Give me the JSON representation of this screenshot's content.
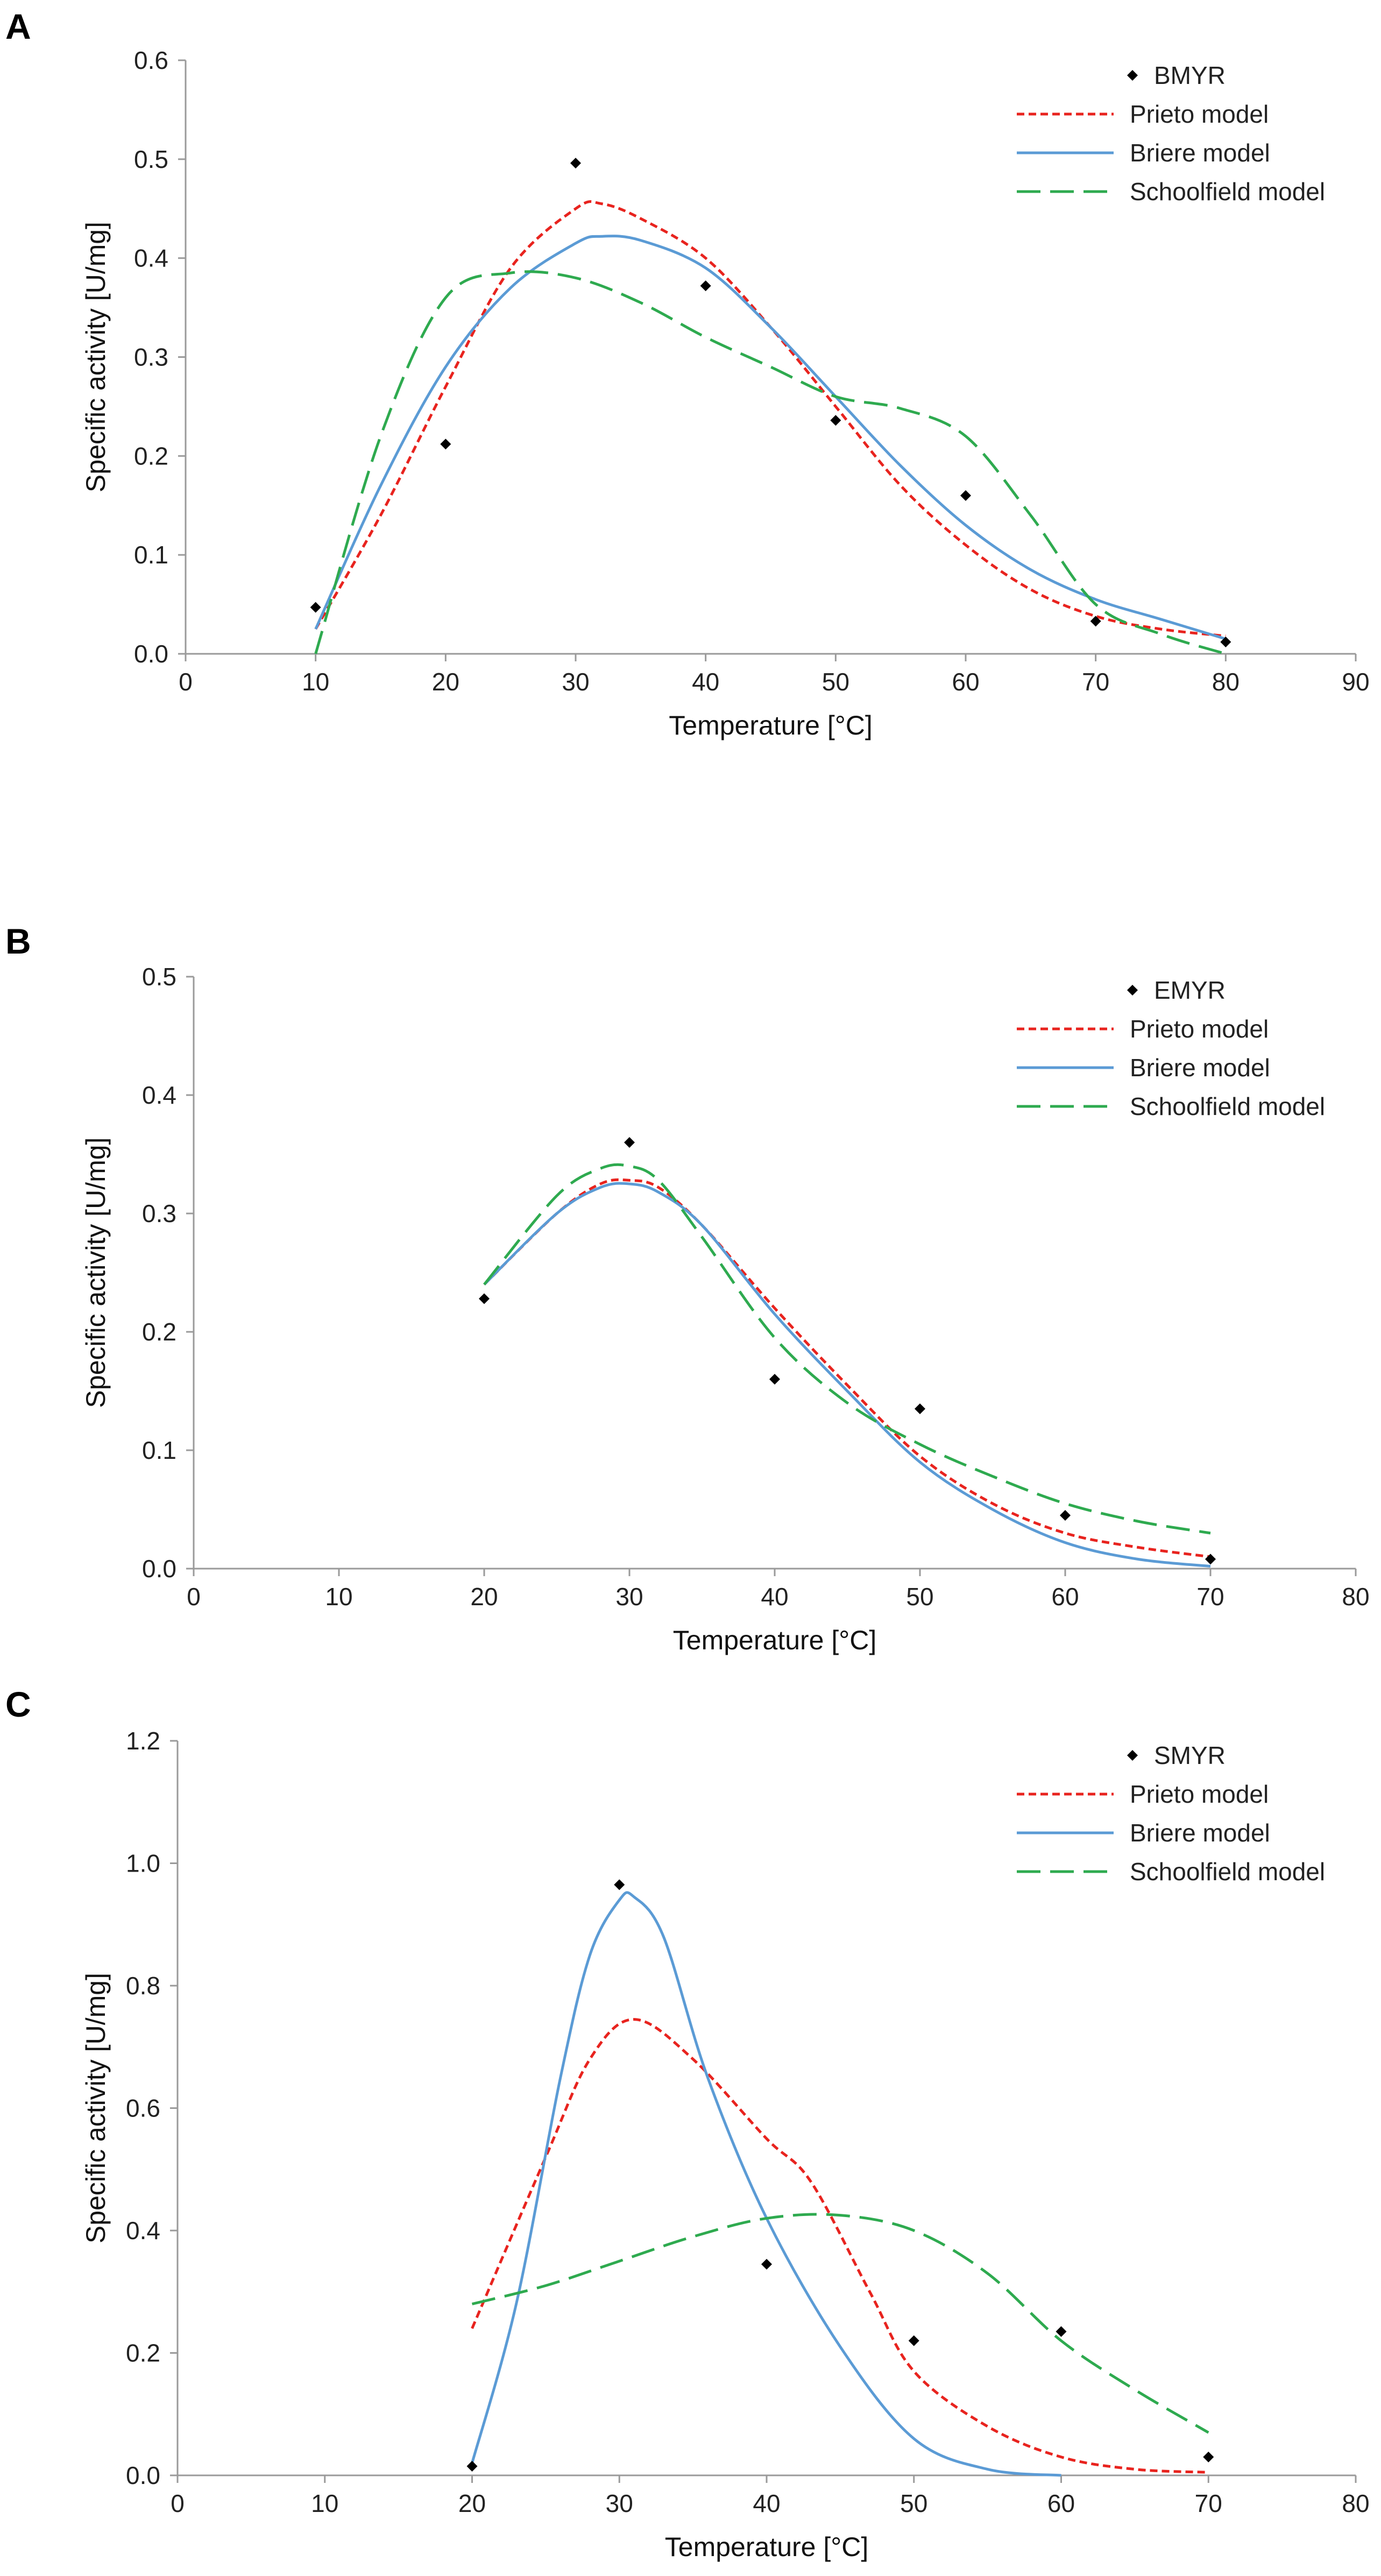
{
  "colors": {
    "points": "#000000",
    "prieto": "#e8231e",
    "briere": "#5b9bd5",
    "schoolfield": "#2eaa4f",
    "axis": "#9a9a9a"
  },
  "chart_data": [
    {
      "panel": "A",
      "type": "scatter",
      "xlabel": "Temperature [°C]",
      "ylabel": "Specific activity [U/mg]",
      "xlim": [
        0,
        90
      ],
      "ylim": [
        0,
        0.6
      ],
      "xticks": [
        0,
        10,
        20,
        30,
        40,
        50,
        60,
        70,
        80,
        90
      ],
      "yticks": [
        0.0,
        0.1,
        0.2,
        0.3,
        0.4,
        0.5,
        0.6
      ],
      "ytick_labels": [
        "0.0",
        "0.1",
        "0.2",
        "0.3",
        "0.4",
        "0.5",
        "0.6"
      ],
      "legend_position": "top-right",
      "series": [
        {
          "name": "BMYR",
          "style": "points",
          "x": [
            10,
            20,
            30,
            40,
            50,
            60,
            70,
            80
          ],
          "y": [
            0.047,
            0.212,
            0.496,
            0.372,
            0.236,
            0.16,
            0.033,
            0.012
          ]
        },
        {
          "name": "Prieto model",
          "style": "dotted",
          "x": [
            10,
            15,
            20,
            25,
            30,
            32,
            35,
            40,
            45,
            50,
            55,
            60,
            65,
            70,
            75,
            80
          ],
          "y": [
            0.025,
            0.14,
            0.27,
            0.39,
            0.45,
            0.455,
            0.44,
            0.4,
            0.33,
            0.25,
            0.17,
            0.11,
            0.065,
            0.038,
            0.025,
            0.018
          ]
        },
        {
          "name": "Briere model",
          "style": "solid",
          "x": [
            10,
            15,
            20,
            25,
            30,
            32,
            35,
            40,
            45,
            50,
            55,
            60,
            65,
            70,
            75,
            80
          ],
          "y": [
            0.025,
            0.17,
            0.29,
            0.37,
            0.415,
            0.422,
            0.418,
            0.39,
            0.33,
            0.26,
            0.19,
            0.13,
            0.085,
            0.055,
            0.035,
            0.015
          ]
        },
        {
          "name": "Schoolfield model",
          "style": "dashed",
          "x": [
            10,
            15,
            20,
            25,
            30,
            35,
            40,
            45,
            50,
            55,
            60,
            65,
            70,
            75,
            80
          ],
          "y": [
            0.0,
            0.22,
            0.36,
            0.385,
            0.38,
            0.355,
            0.32,
            0.29,
            0.26,
            0.248,
            0.22,
            0.14,
            0.05,
            0.02,
            0.0
          ]
        }
      ]
    },
    {
      "panel": "B",
      "type": "scatter",
      "xlabel": "Temperature [°C]",
      "ylabel": "Specific activity [U/mg]",
      "xlim": [
        0,
        80
      ],
      "ylim": [
        0,
        0.5
      ],
      "xticks": [
        0,
        10,
        20,
        30,
        40,
        50,
        60,
        70,
        80
      ],
      "yticks": [
        0.0,
        0.1,
        0.2,
        0.3,
        0.4,
        0.5
      ],
      "ytick_labels": [
        "0.0",
        "0.1",
        "0.2",
        "0.3",
        "0.4",
        "0.5"
      ],
      "legend_position": "top-right",
      "series": [
        {
          "name": "EMYR",
          "style": "points",
          "x": [
            20,
            30,
            40,
            50,
            60,
            70
          ],
          "y": [
            0.228,
            0.36,
            0.16,
            0.135,
            0.045,
            0.008
          ]
        },
        {
          "name": "Prieto model",
          "style": "dotted",
          "x": [
            20,
            25,
            28,
            30,
            32,
            35,
            40,
            45,
            50,
            55,
            60,
            65,
            70
          ],
          "y": [
            0.24,
            0.3,
            0.325,
            0.328,
            0.322,
            0.29,
            0.22,
            0.155,
            0.095,
            0.055,
            0.03,
            0.018,
            0.01
          ]
        },
        {
          "name": "Briere model",
          "style": "solid",
          "x": [
            20,
            25,
            28,
            30,
            32,
            35,
            40,
            45,
            50,
            55,
            60,
            65,
            70
          ],
          "y": [
            0.24,
            0.3,
            0.322,
            0.325,
            0.318,
            0.29,
            0.215,
            0.15,
            0.09,
            0.05,
            0.022,
            0.008,
            0.002
          ]
        },
        {
          "name": "Schoolfield model",
          "style": "dashed",
          "x": [
            20,
            25,
            28,
            30,
            32,
            35,
            40,
            45,
            50,
            55,
            60,
            65,
            70
          ],
          "y": [
            0.24,
            0.315,
            0.338,
            0.34,
            0.328,
            0.28,
            0.195,
            0.14,
            0.105,
            0.078,
            0.055,
            0.04,
            0.03
          ]
        }
      ]
    },
    {
      "panel": "C",
      "type": "scatter",
      "xlabel": "Temperature [°C]",
      "ylabel": "Specific activity [U/mg]",
      "xlim": [
        0,
        80
      ],
      "ylim": [
        0,
        1.2
      ],
      "xticks": [
        0,
        10,
        20,
        30,
        40,
        50,
        60,
        70,
        80
      ],
      "yticks": [
        0.0,
        0.2,
        0.4,
        0.6,
        0.8,
        1.0,
        1.2
      ],
      "ytick_labels": [
        "0.0",
        "0.2",
        "0.4",
        "0.6",
        "0.8",
        "1.0",
        "1.2"
      ],
      "legend_position": "top-right",
      "series": [
        {
          "name": "SMYR",
          "style": "points",
          "x": [
            20,
            30,
            40,
            50,
            60,
            70
          ],
          "y": [
            0.015,
            0.965,
            0.345,
            0.22,
            0.235,
            0.03
          ]
        },
        {
          "name": "Prieto model",
          "style": "dotted",
          "x": [
            20,
            25,
            28,
            31,
            35,
            40,
            43,
            47,
            50,
            55,
            60,
            65,
            70
          ],
          "y": [
            0.24,
            0.52,
            0.68,
            0.745,
            0.68,
            0.55,
            0.48,
            0.3,
            0.17,
            0.08,
            0.03,
            0.01,
            0.005
          ]
        },
        {
          "name": "Briere model",
          "style": "solid",
          "x": [
            20,
            23,
            26,
            28,
            30,
            31,
            33,
            36,
            40,
            45,
            50,
            55,
            60
          ],
          "y": [
            0.02,
            0.28,
            0.65,
            0.85,
            0.94,
            0.945,
            0.88,
            0.65,
            0.42,
            0.21,
            0.06,
            0.01,
            0.0
          ]
        },
        {
          "name": "Schoolfield model",
          "style": "dashed",
          "x": [
            20,
            25,
            30,
            35,
            40,
            45,
            50,
            55,
            60,
            65,
            70
          ],
          "y": [
            0.28,
            0.31,
            0.35,
            0.39,
            0.42,
            0.425,
            0.4,
            0.33,
            0.22,
            0.14,
            0.07
          ]
        }
      ]
    }
  ]
}
